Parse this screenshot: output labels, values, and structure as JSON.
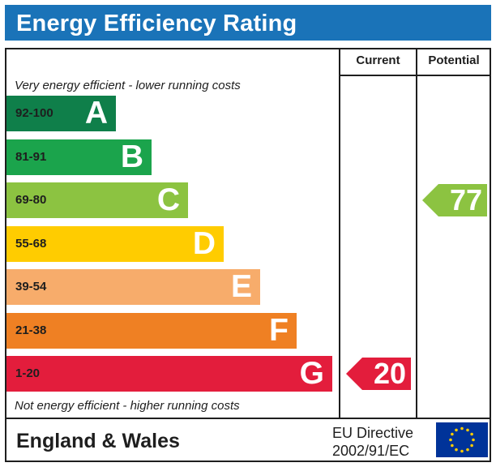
{
  "title": "Energy Efficiency Rating",
  "columns": {
    "current": "Current",
    "potential": "Potential"
  },
  "notes": {
    "top": "Very energy efficient - lower running costs",
    "bottom": "Not energy efficient - higher running costs"
  },
  "footer": {
    "region": "England & Wales",
    "directive_line1": "EU Directive",
    "directive_line2": "2002/91/EC"
  },
  "chart_data": {
    "type": "bar",
    "title": "Energy Efficiency Rating",
    "bands": [
      {
        "range": "92-100",
        "letter": "A",
        "color": "#0f7f4a"
      },
      {
        "range": "81-91",
        "letter": "B",
        "color": "#1ba44c"
      },
      {
        "range": "69-80",
        "letter": "C",
        "color": "#8cc341"
      },
      {
        "range": "55-68",
        "letter": "D",
        "color": "#ffcc00"
      },
      {
        "range": "39-54",
        "letter": "E",
        "color": "#f7ac6b"
      },
      {
        "range": "21-38",
        "letter": "F",
        "color": "#ef8023"
      },
      {
        "range": "1-20",
        "letter": "G",
        "color": "#e31d3c"
      }
    ],
    "current": {
      "value": 20,
      "band": "G",
      "color": "#e31d3c"
    },
    "potential": {
      "value": 77,
      "band": "C",
      "color": "#8cc341"
    }
  },
  "flag_colors": {
    "background": "#003399",
    "stars": "#ffcc00"
  }
}
